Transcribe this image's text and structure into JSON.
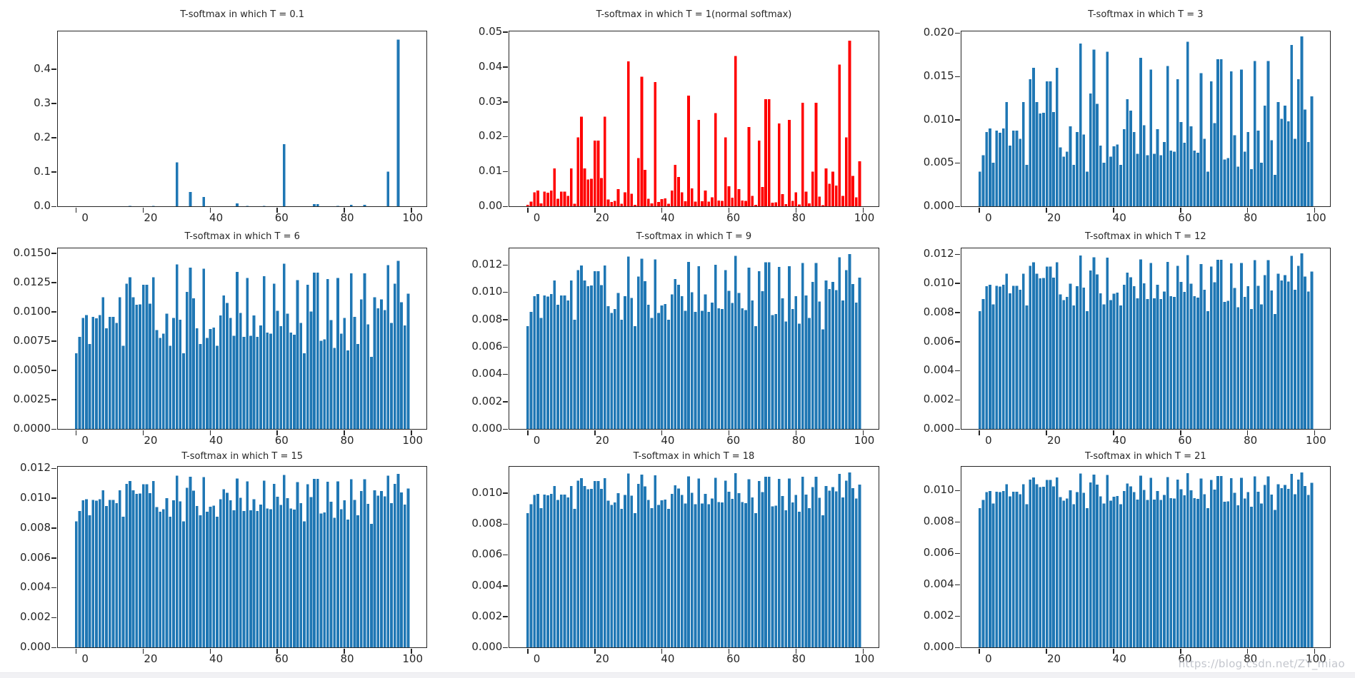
{
  "page": {
    "background": "#ffffff",
    "watermark": "https://blog.csdn.net/ZY_miao"
  },
  "chart_data": {
    "type": "bar",
    "layout": "3x3",
    "xlabel": "",
    "ylabel": "",
    "grid": false,
    "legend": "none",
    "x_description": "category index 0-99, one bar per index",
    "xticks": [
      0,
      20,
      40,
      60,
      80,
      100
    ],
    "xlim": [
      -5.5,
      104.5
    ],
    "bar_width": 0.8,
    "transform": "p_i(T) = p_i^(1/T) / sum_j p_j^(1/T) applied to base_probabilities",
    "base_probabilities": [
      0.0004,
      0.0013,
      0.004,
      0.0046,
      0.0008,
      0.0042,
      0.0039,
      0.0046,
      0.011,
      0.0022,
      0.0042,
      0.0042,
      0.003,
      0.011,
      0.0007,
      0.02,
      0.026,
      0.011,
      0.0078,
      0.008,
      0.019,
      0.019,
      0.0082,
      0.026,
      0.002,
      0.0012,
      0.0016,
      0.005,
      0.0007,
      0.004,
      0.042,
      0.0036,
      0.0004,
      0.014,
      0.0375,
      0.0105,
      0.0022,
      0.0008,
      0.036,
      0.0012,
      0.0021,
      0.0023,
      0.0007,
      0.0045,
      0.012,
      0.0085,
      0.004,
      0.0014,
      0.032,
      0.0052,
      0.0013,
      0.025,
      0.0014,
      0.0045,
      0.0013,
      0.0026,
      0.027,
      0.0017,
      0.0016,
      0.02,
      0.0058,
      0.0025,
      0.0435,
      0.005,
      0.0017,
      0.0015,
      0.023,
      0.003,
      0.0004,
      0.019,
      0.0056,
      0.031,
      0.031,
      0.001,
      0.0011,
      0.024,
      0.0035,
      0.0006,
      0.025,
      0.0016,
      0.004,
      0.0005,
      0.03,
      0.0042,
      0.0008,
      0.01,
      0.03,
      0.0028,
      0.0003,
      0.011,
      0.0065,
      0.01,
      0.006,
      0.041,
      0.003,
      0.02,
      0.048,
      0.0088,
      0.0026,
      0.013
    ],
    "charts": [
      {
        "title": "T-softmax in which T = 0.1",
        "temperature": 0.1,
        "color": "#1f77b4",
        "ylim": 0.51,
        "yticks": [
          0,
          0.1,
          0.2,
          0.3,
          0.4
        ],
        "ytick_decimals": 1,
        "max_bar_value": 0.445
      },
      {
        "title": "T-softmax in which T = 1(normal softmax)",
        "temperature": 1,
        "color": "#ff0000",
        "ylim": 0.0502,
        "yticks": [
          0,
          0.01,
          0.02,
          0.03,
          0.04,
          0.05
        ],
        "ytick_decimals": 2,
        "max_bar_value": 0.048
      },
      {
        "title": "T-softmax in which T = 3",
        "temperature": 3,
        "color": "#1f77b4",
        "ylim": 0.0202,
        "yticks": [
          0,
          0.005,
          0.01,
          0.015,
          0.02
        ],
        "ytick_decimals": 3,
        "max_bar_value": 0.02
      },
      {
        "title": "T-softmax in which T = 6",
        "temperature": 6,
        "color": "#1f77b4",
        "ylim": 0.0154,
        "yticks": [
          0,
          0.0025,
          0.005,
          0.0075,
          0.01,
          0.0125,
          0.015
        ],
        "ytick_decimals": 4,
        "max_bar_value": 0.0146
      },
      {
        "title": "T-softmax in which T = 9",
        "temperature": 9,
        "color": "#1f77b4",
        "ylim": 0.0132,
        "yticks": [
          0,
          0.002,
          0.004,
          0.006,
          0.008,
          0.01,
          0.012
        ],
        "ytick_decimals": 3,
        "max_bar_value": 0.0128
      },
      {
        "title": "T-softmax in which T = 12",
        "temperature": 12,
        "color": "#1f77b4",
        "ylim": 0.0124,
        "yticks": [
          0,
          0.002,
          0.004,
          0.006,
          0.008,
          0.01,
          0.012
        ],
        "ytick_decimals": 3,
        "max_bar_value": 0.0122
      },
      {
        "title": "T-softmax in which T = 15",
        "temperature": 15,
        "color": "#1f77b4",
        "ylim": 0.0121,
        "yticks": [
          0,
          0.002,
          0.004,
          0.006,
          0.008,
          0.01,
          0.012
        ],
        "ytick_decimals": 3,
        "max_bar_value": 0.0117
      },
      {
        "title": "T-softmax in which T = 18",
        "temperature": 18,
        "color": "#1f77b4",
        "ylim": 0.0117,
        "yticks": [
          0,
          0.002,
          0.004,
          0.006,
          0.008,
          0.01
        ],
        "ytick_decimals": 3,
        "max_bar_value": 0.0115
      },
      {
        "title": "T-softmax in which T = 21",
        "temperature": 21,
        "color": "#1f77b4",
        "ylim": 0.0115,
        "yticks": [
          0,
          0.002,
          0.004,
          0.006,
          0.008,
          0.01
        ],
        "ytick_decimals": 3,
        "max_bar_value": 0.0113
      }
    ]
  }
}
